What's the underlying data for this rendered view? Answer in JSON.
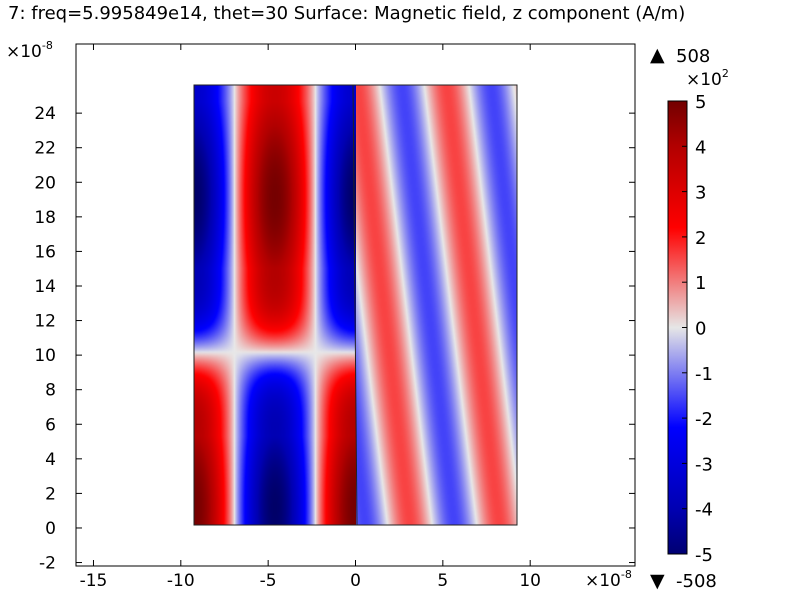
{
  "title": "7: freq=5.995849e14, thet=30   Surface: Magnetic field, z component (A/m)",
  "chart_data": {
    "type": "heatmap",
    "title": "7: freq=5.995849e14, thet=30   Surface: Magnetic field, z component (A/m)",
    "quantity": "Magnetic field, z component",
    "unit": "A/m",
    "x_multiplier": "×10",
    "x_exponent": "-8",
    "y_multiplier": "×10",
    "y_exponent": "-8",
    "xlim": [
      -16,
      16
    ],
    "ylim": [
      -2.2,
      28
    ],
    "x_ticks": [
      -15,
      -10,
      -5,
      0,
      5,
      10
    ],
    "y_ticks": [
      -2,
      0,
      2,
      4,
      6,
      8,
      10,
      12,
      14,
      16,
      18,
      20,
      22,
      24
    ],
    "regions": [
      {
        "name": "left",
        "x": [
          -9,
          0.2
        ],
        "y": [
          0,
          25
        ]
      },
      {
        "name": "right",
        "x": [
          0.2,
          9.4
        ],
        "y": [
          0,
          25
        ]
      }
    ],
    "colorbar": {
      "multiplier": "×10",
      "exponent": "2",
      "ticks": [
        5,
        4,
        3,
        2,
        1,
        0,
        -1,
        -2,
        -3,
        -4,
        -5
      ],
      "max_label": "508",
      "min_label": "-508",
      "max_value": 508,
      "min_value": -508,
      "colormap": [
        "#001a66",
        "#0000ff",
        "#ffffff",
        "#ff0000",
        "#7a0000"
      ]
    }
  }
}
